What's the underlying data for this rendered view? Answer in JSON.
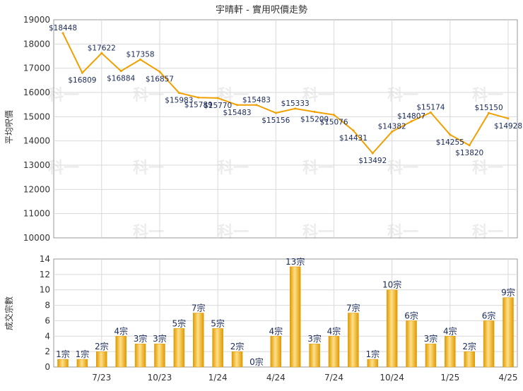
{
  "title": "宇晴軒 - 實用呎價走勢",
  "colors": {
    "line": "#f0a000",
    "bar_light": "#ffe08a",
    "bar_mid": "#f7c431",
    "bar_dark": "#e09a00",
    "grid": "#d9d9d9",
    "axis": "#999999",
    "text": "#333333",
    "label": "#1a2a5a",
    "watermark": "#ececec"
  },
  "watermark_text": "科一",
  "chart_data": [
    {
      "type": "line",
      "ylabel": "平均呎價",
      "ylim": [
        10000,
        19000
      ],
      "yticks": [
        "10000",
        "11000",
        "12000",
        "13000",
        "14000",
        "15000",
        "16000",
        "17000",
        "18000",
        "19000"
      ],
      "grid": true,
      "values": [
        18448,
        16809,
        17622,
        16884,
        17358,
        16857,
        15983,
        15789,
        15770,
        15483,
        15483,
        15156,
        15333,
        15200,
        15076,
        14431,
        13492,
        14382,
        14807,
        15174,
        14255,
        13820,
        15150,
        14928
      ],
      "labels": [
        "$18448",
        "$16809",
        "$17622",
        "$16884",
        "$17358",
        "$16857",
        "$15983",
        "$15789",
        "$15770",
        "$15483",
        "$15483",
        "$15156",
        "$15333",
        "$15200",
        "$15076",
        "$14431",
        "$13492",
        "$14382",
        "$14807",
        "$15174",
        "$14255",
        "$13820",
        "$15150",
        "$14928"
      ]
    },
    {
      "type": "bar",
      "ylabel": "成交宗數",
      "ylim": [
        0,
        14
      ],
      "yticks": [
        "0",
        "2",
        "4",
        "6",
        "8",
        "10",
        "12",
        "14"
      ],
      "grid": true,
      "categories": [
        "7/23",
        "10/23",
        "1/24",
        "4/24",
        "7/24",
        "10/24",
        "1/25",
        "4/25"
      ],
      "values": [
        1,
        1,
        2,
        4,
        3,
        3,
        5,
        7,
        5,
        2,
        0,
        4,
        13,
        3,
        4,
        7,
        1,
        10,
        6,
        3,
        4,
        2,
        6,
        9
      ],
      "labels": [
        "1宗",
        "1宗",
        "2宗",
        "4宗",
        "3宗",
        "3宗",
        "5宗",
        "7宗",
        "5宗",
        "2宗",
        "0宗",
        "4宗",
        "13宗",
        "3宗",
        "4宗",
        "7宗",
        "1宗",
        "10宗",
        "6宗",
        "3宗",
        "4宗",
        "2宗",
        "6宗",
        "9宗"
      ]
    }
  ]
}
